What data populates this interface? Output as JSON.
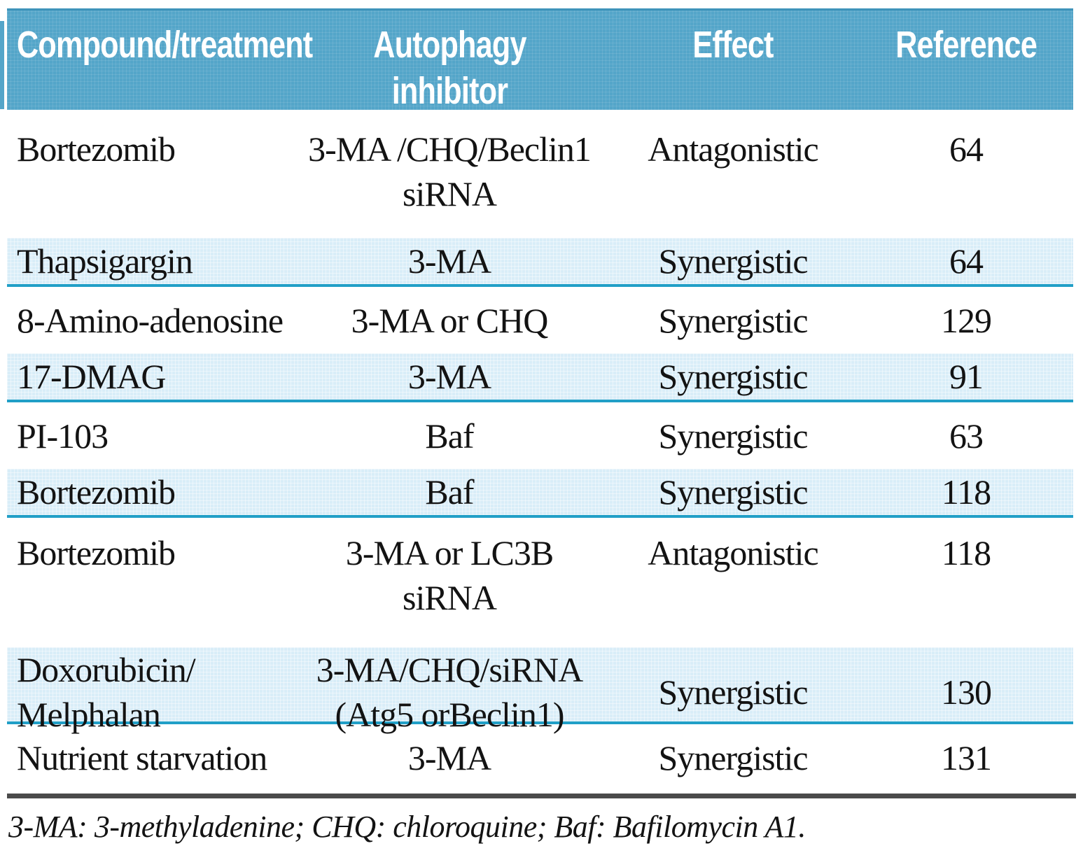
{
  "table": {
    "columns": [
      "Compound/treatment",
      "Autophagy\ninhibitor",
      "Effect",
      "Reference"
    ],
    "rows": [
      {
        "compound": "Bortezomib",
        "inhibitor": "3-MA /CHQ/Beclin1\nsiRNA",
        "effect": "Antagonistic",
        "reference": "64"
      },
      {
        "compound": "Thapsigargin",
        "inhibitor": "3-MA",
        "effect": "Synergistic",
        "reference": "64"
      },
      {
        "compound": "8-Amino-adenosine",
        "inhibitor": "3-MA or CHQ",
        "effect": "Synergistic",
        "reference": "129"
      },
      {
        "compound": "17-DMAG",
        "inhibitor": "3-MA",
        "effect": "Synergistic",
        "reference": "91"
      },
      {
        "compound": "PI-103",
        "inhibitor": "Baf",
        "effect": "Synergistic",
        "reference": "63"
      },
      {
        "compound": "Bortezomib",
        "inhibitor": "Baf",
        "effect": "Synergistic",
        "reference": "118"
      },
      {
        "compound": "Bortezomib",
        "inhibitor": "3-MA or LC3B\nsiRNA",
        "effect": "Antagonistic",
        "reference": "118"
      },
      {
        "compound": "Doxorubicin/\nMelphalan",
        "inhibitor": "3-MA/CHQ/siRNA\n(Atg5 orBeclin1)",
        "effect": "Synergistic",
        "reference": "130"
      },
      {
        "compound": "Nutrient starvation",
        "inhibitor": "3-MA",
        "effect": "Synergistic",
        "reference": "131"
      }
    ],
    "footnote": "3-MA: 3-methyladenine; CHQ: chloroquine; Baf: Bafilomycin A1.",
    "colors": {
      "header_bg": "#54a5c9",
      "header_bg_edge": "#3e93ba",
      "row_alt_bg": "#d9edf8",
      "row_divider": "#219fc7",
      "footnote_rule": "#4a4a4a",
      "text_color": "#131313"
    }
  }
}
